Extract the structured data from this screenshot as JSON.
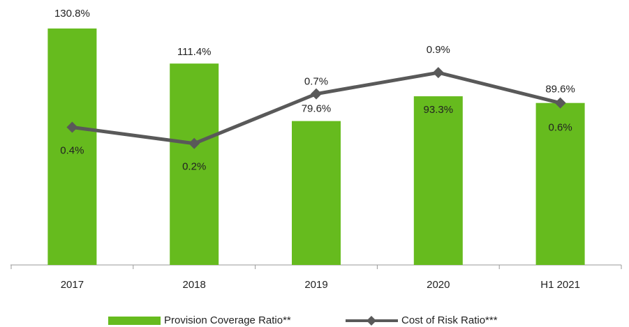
{
  "chart_data": {
    "type": "bar+line",
    "categories": [
      "2017",
      "2018",
      "2019",
      "2020",
      "H1 2021"
    ],
    "ylim": [
      0,
      140
    ],
    "y2lim": [
      -1,
      1.5
    ],
    "series": [
      {
        "name": "Provision Coverage Ratio**",
        "color": "#66bb1e",
        "type": "bar",
        "values": [
          130.8,
          111.4,
          79.6,
          93.3,
          89.6
        ],
        "value_labels": [
          "130.8%",
          "111.4%",
          "79.6%",
          "93.3%",
          "89.6%"
        ]
      },
      {
        "name": "Cost of Risk Ratio***",
        "color": "#595959",
        "type": "line",
        "axis": "y2",
        "values": [
          0.36,
          0.2,
          0.69,
          0.9,
          0.6
        ],
        "value_labels": [
          "0.4%",
          "0.2%",
          "0.7%",
          "0.9%",
          "0.6%"
        ]
      }
    ]
  }
}
